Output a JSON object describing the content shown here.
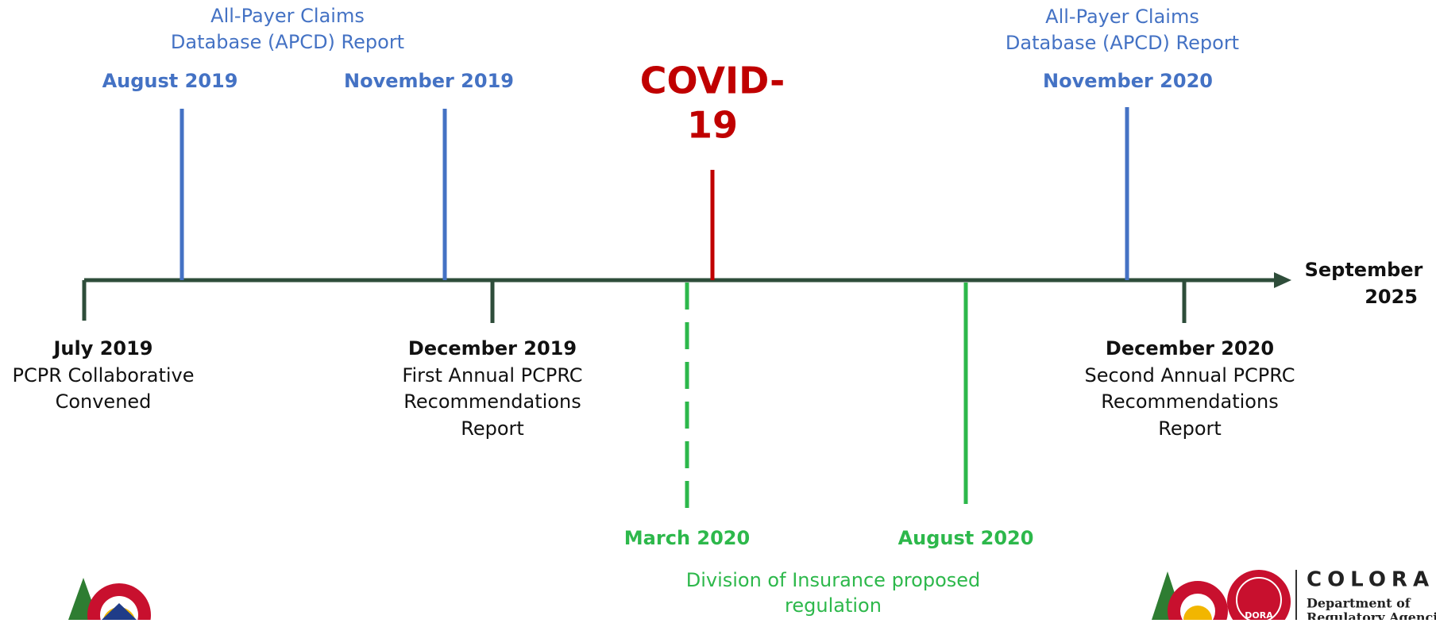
{
  "timeline": {
    "above": [
      {
        "date": "August 2019",
        "note": [
          "All-Payer Claims",
          "Database (APCD) Report"
        ]
      },
      {
        "date": "November 2019"
      },
      {
        "date": [
          "COVID-",
          "19"
        ]
      },
      {
        "date": "November 2020",
        "note": [
          "All-Payer Claims",
          "Database (APCD) Report"
        ]
      }
    ],
    "below": [
      {
        "date": "July 2019",
        "note": [
          "PCPR Collaborative",
          "Convened"
        ]
      },
      {
        "date": "December 2019",
        "note": [
          "First Annual PCPRC",
          "Recommendations",
          "Report"
        ]
      },
      {
        "date": "December 2020",
        "note": [
          "Second Annual PCPRC",
          "Recommendations",
          "Report"
        ]
      }
    ],
    "doi": {
      "dates": [
        "March 2020",
        "August 2020"
      ],
      "note": [
        "Division of Insurance proposed",
        "regulation"
      ]
    },
    "end": [
      "September",
      "2025"
    ]
  },
  "logo": {
    "badge": "DORA",
    "name": "COLORADO",
    "dept": [
      "Department of",
      "Regulatory Agencies"
    ]
  }
}
